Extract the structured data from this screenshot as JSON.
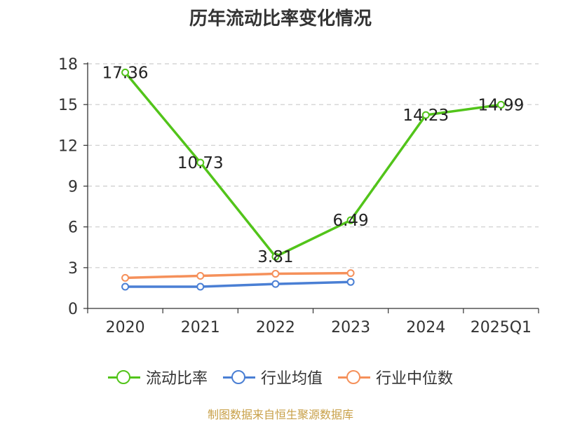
{
  "chart_data": {
    "type": "line",
    "title": "历年流动比率变化情况",
    "categories": [
      "2020",
      "2021",
      "2022",
      "2023",
      "2024",
      "2025Q1"
    ],
    "y_ticks": [
      "0",
      "3",
      "6",
      "9",
      "12",
      "15",
      "18"
    ],
    "ylim": [
      0,
      18
    ],
    "grid": "horizontal-dashed",
    "legend_position": "bottom",
    "series": [
      {
        "name": "流动比率",
        "color": "#52c41a",
        "values": [
          17.36,
          10.73,
          3.81,
          6.49,
          14.23,
          14.99
        ],
        "labels": [
          "17.36",
          "10.73",
          "3.81",
          "6.49",
          "14.23",
          "14.99"
        ]
      },
      {
        "name": "行业均值",
        "color": "#4a7fd4",
        "values": [
          1.6,
          1.6,
          1.8,
          1.95,
          null,
          null
        ]
      },
      {
        "name": "行业中位数",
        "color": "#f5905a",
        "values": [
          2.25,
          2.4,
          2.55,
          2.6,
          null,
          null
        ]
      }
    ]
  },
  "source_text": "制图数据来自恒生聚源数据库"
}
